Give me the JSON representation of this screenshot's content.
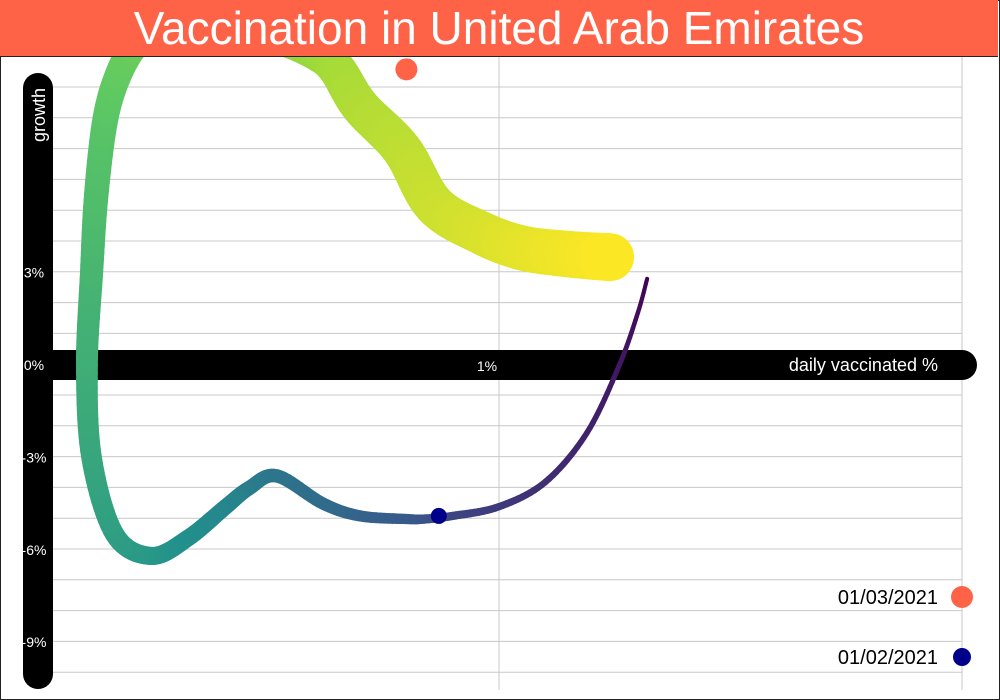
{
  "title": "Vaccination in United Arab Emirates",
  "colors": {
    "title_bg": "#ff6347",
    "grid": "#c8c8c8",
    "axis": "#000000",
    "start_marker": "#00008b",
    "end_marker": "#ff6347",
    "palette": [
      "#440154",
      "#3b528b",
      "#21918c",
      "#5ec962",
      "#a0da39",
      "#fde725"
    ]
  },
  "chart_data": {
    "type": "line",
    "xlabel": "daily vaccinated %",
    "ylabel": "growth",
    "x_ticks": [
      {
        "value": 1,
        "label": "1%"
      }
    ],
    "y_ticks": [
      {
        "value": 3,
        "label": "3%"
      },
      {
        "value": 0,
        "label": "0%"
      },
      {
        "value": -3,
        "label": "-3%"
      },
      {
        "value": -6,
        "label": "-6%"
      },
      {
        "value": -9,
        "label": "-9%"
      }
    ],
    "xlim": [
      -0.05,
      1.9
    ],
    "ylim": [
      -10,
      10
    ],
    "grid": true,
    "legend": [
      {
        "label": "01/03/2021",
        "color": "#ff6347",
        "position": "bottom-right"
      },
      {
        "label": "01/02/2021",
        "color": "#00008b",
        "position": "bottom-right"
      }
    ],
    "series": [
      {
        "start_date": "01/02/2021",
        "end_date": "01/03/2021",
        "x": [
          1.32,
          1.3,
          1.26,
          1.19,
          1.1,
          1.0,
          0.9,
          0.84,
          0.8,
          0.7,
          0.62,
          0.52,
          0.46,
          0.41,
          0.33,
          0.25,
          0.17,
          0.12,
          0.11,
          0.12,
          0.13,
          0.15,
          0.18,
          0.22,
          0.27,
          0.33,
          0.43,
          0.53,
          0.61,
          0.65,
          0.7,
          0.79,
          0.86,
          0.96,
          1.05,
          1.15,
          1.24
        ],
        "y": [
          2.8,
          1.7,
          0.0,
          -2.2,
          -3.8,
          -4.6,
          -4.9,
          -5.0,
          -5.0,
          -4.9,
          -4.5,
          -3.6,
          -4.0,
          -4.6,
          -5.6,
          -6.2,
          -5.5,
          -3.0,
          0.0,
          3.0,
          5.5,
          8.0,
          9.5,
          10.5,
          11.0,
          11.0,
          10.8,
          10.6,
          10.1,
          9.6,
          8.4,
          7.0,
          5.2,
          4.3,
          3.8,
          3.6,
          3.5
        ]
      }
    ]
  }
}
